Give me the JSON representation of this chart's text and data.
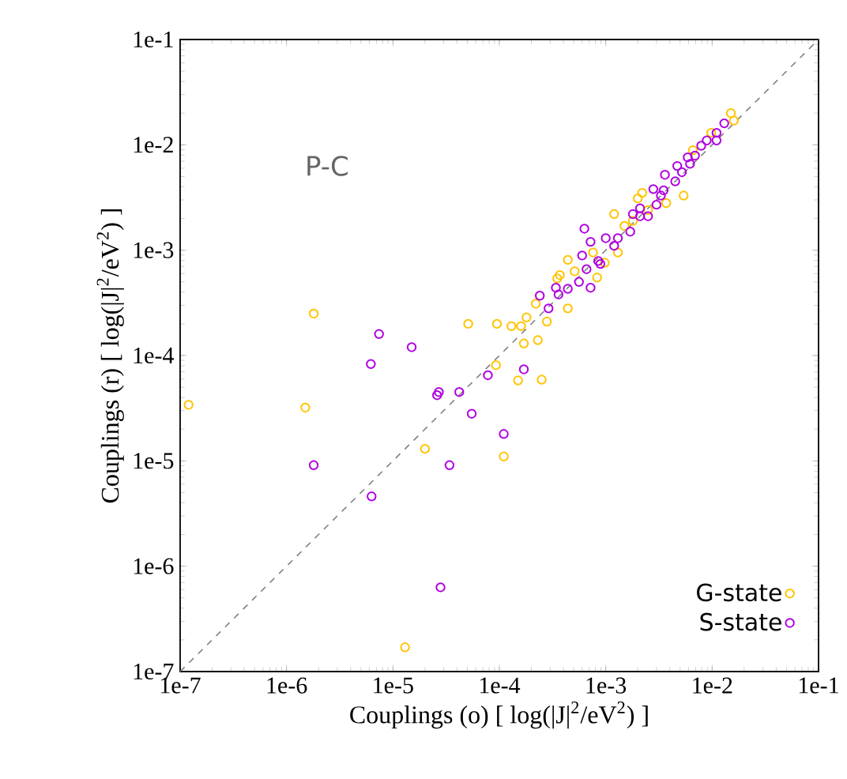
{
  "chart_data": {
    "type": "scatter",
    "xlabel": "Couplings (o) [ log(|J|$^{2}$/eV$^{2}$) ]",
    "ylabel": "Couplings (r) [ log(|J|$^{2}$/eV$^{2}$) ]",
    "annotations": [
      "P-C"
    ],
    "log": "xy",
    "xlim": [
      1e-07,
      0.1
    ],
    "ylim": [
      1e-07,
      0.1
    ],
    "xticks": [
      {
        "value": 1e-07,
        "label": "1e-7"
      },
      {
        "value": 1e-06,
        "label": "1e-6"
      },
      {
        "value": 1e-05,
        "label": "1e-5"
      },
      {
        "value": 0.0001,
        "label": "1e-4"
      },
      {
        "value": 0.001,
        "label": "1e-3"
      },
      {
        "value": 0.01,
        "label": "1e-2"
      },
      {
        "value": 0.1,
        "label": "1e-1"
      }
    ],
    "yticks": [
      {
        "value": 1e-07,
        "label": "1e-7"
      },
      {
        "value": 1e-06,
        "label": "1e-6"
      },
      {
        "value": 1e-05,
        "label": "1e-5"
      },
      {
        "value": 0.0001,
        "label": "1e-4"
      },
      {
        "value": 0.001,
        "label": "1e-3"
      },
      {
        "value": 0.01,
        "label": "1e-2"
      },
      {
        "value": 0.1,
        "label": "1e-1"
      }
    ],
    "legend": "bottom right",
    "marker": "circle",
    "grid": false,
    "series": [
      {
        "type": "line",
        "color": "#808080",
        "line_style": "dashed",
        "marker": "none",
        "x": [
          1e-07,
          0.1
        ],
        "values": [
          1e-07,
          0.1
        ]
      },
      {
        "name": "G-state",
        "color": "#ffc400",
        "x": [
          1.2e-07,
          1.8e-06,
          1.5e-06,
          5.1e-05,
          9.5e-05,
          0.00013,
          9.3e-05,
          0.00015,
          0.00025,
          0.00017,
          0.00023,
          2e-05,
          0.00011,
          1.3e-05,
          0.00016,
          0.00018,
          0.00022,
          0.00028,
          0.00044,
          0.00035,
          0.00037,
          0.00044,
          0.00083,
          0.00051,
          0.00076,
          0.00098,
          0.0013,
          0.0012,
          0.0015,
          0.0022,
          0.002,
          0.0037,
          0.0054,
          0.0066,
          0.0098,
          0.015,
          0.016,
          0.0025,
          0.0018
        ],
        "values": [
          3.4e-05,
          0.00025,
          3.2e-05,
          0.0002,
          0.0002,
          0.00019,
          8.1e-05,
          5.8e-05,
          5.9e-05,
          0.00013,
          0.00014,
          1.3e-05,
          1.1e-05,
          1.7e-07,
          0.00019,
          0.00023,
          0.00031,
          0.00021,
          0.00028,
          0.00054,
          0.00058,
          0.00081,
          0.00055,
          0.00063,
          0.00095,
          0.00076,
          0.00095,
          0.0022,
          0.0017,
          0.0035,
          0.0031,
          0.0028,
          0.0033,
          0.0089,
          0.013,
          0.02,
          0.017,
          0.0024,
          0.0019
        ]
      },
      {
        "name": "S-state",
        "color": "#b000e0",
        "x": [
          7.4e-06,
          1.5e-05,
          6.2e-06,
          1.8e-06,
          6.3e-06,
          2.7e-05,
          2.6e-05,
          4.2e-05,
          5.5e-05,
          3.4e-05,
          0.00011,
          2.8e-05,
          7.8e-05,
          0.00017,
          0.00024,
          0.00029,
          0.00036,
          0.00034,
          0.00044,
          0.00056,
          0.00072,
          0.0006,
          0.00066,
          0.00085,
          0.00089,
          0.00063,
          0.00072,
          0.001,
          0.0012,
          0.0013,
          0.0017,
          0.0018,
          0.0021,
          0.0025,
          0.003,
          0.0033,
          0.0028,
          0.0035,
          0.0021,
          0.0036,
          0.0045,
          0.0047,
          0.0052,
          0.0059,
          0.0069,
          0.0079,
          0.0089,
          0.011,
          0.011,
          0.013,
          0.0062
        ],
        "values": [
          0.00016,
          0.00012,
          8.3e-05,
          9.1e-06,
          4.6e-06,
          4.5e-05,
          4.2e-05,
          4.5e-05,
          2.8e-05,
          9.1e-06,
          1.8e-05,
          6.3e-07,
          6.5e-05,
          7.4e-05,
          0.00037,
          0.00028,
          0.00038,
          0.00044,
          0.00043,
          0.0005,
          0.00044,
          0.00089,
          0.00066,
          0.00079,
          0.00074,
          0.0016,
          0.0012,
          0.0013,
          0.0011,
          0.0013,
          0.0015,
          0.0022,
          0.0025,
          0.0021,
          0.0027,
          0.0033,
          0.0038,
          0.0037,
          0.0021,
          0.0052,
          0.0045,
          0.0063,
          0.0055,
          0.0076,
          0.0079,
          0.0098,
          0.011,
          0.013,
          0.011,
          0.016,
          0.0066
        ]
      }
    ]
  }
}
